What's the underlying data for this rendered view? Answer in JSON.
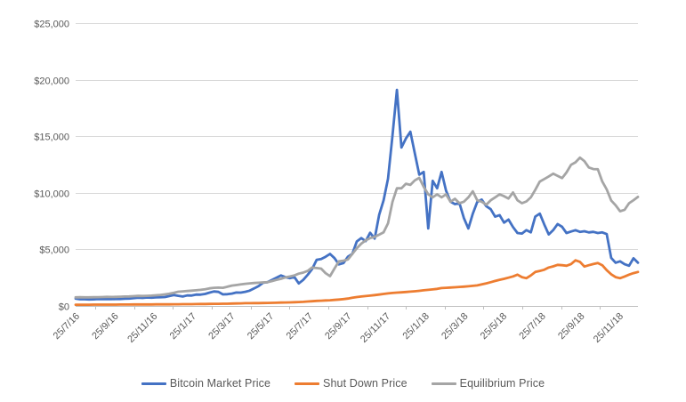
{
  "colors": {
    "background": "#ffffff",
    "gridline": "#d9d9d9",
    "axis_line": "#bfbfbf",
    "axis_text": "#595959",
    "legend_text": "#595959",
    "series_blue": "#4472c4",
    "series_orange": "#ed7d31",
    "series_gray": "#a5a5a5"
  },
  "chart_data": {
    "type": "line",
    "title": "",
    "xlabel": "",
    "ylabel": "",
    "grid": true,
    "legend_position": "bottom",
    "x_axis": {
      "points_start": "25/7/16",
      "points_interval_days": 7,
      "tick_labels": [
        "25/7/16",
        "25/9/16",
        "25/11/16",
        "25/1/17",
        "25/3/17",
        "25/5/17",
        "25/7/17",
        "25/9/17",
        "25/11/17",
        "25/1/18",
        "25/3/18",
        "25/5/18",
        "25/7/18",
        "25/9/18",
        "25/11/18"
      ]
    },
    "y_axis": {
      "min": 0,
      "max": 25000,
      "tick_values": [
        0,
        5000,
        10000,
        15000,
        20000,
        25000
      ],
      "tick_labels": [
        "$0",
        "$5,000",
        "$10,000",
        "$15,000",
        "$20,000",
        "$25,000"
      ]
    },
    "series": [
      {
        "name": "Bitcoin Market Price",
        "color": "#4472c4",
        "values": [
          655,
          590,
          590,
          575,
          580,
          610,
          605,
          610,
          600,
          610,
          615,
          640,
          655,
          690,
          730,
          705,
          745,
          735,
          765,
          770,
          790,
          875,
          960,
          900,
          830,
          925,
          920,
          1010,
          1000,
          1060,
          1180,
          1280,
          1240,
          1020,
          1040,
          1090,
          1190,
          1180,
          1250,
          1350,
          1550,
          1760,
          2050,
          2100,
          2300,
          2500,
          2700,
          2550,
          2450,
          2560,
          1990,
          2300,
          2750,
          3260,
          4080,
          4150,
          4350,
          4600,
          4230,
          3670,
          3790,
          4350,
          4610,
          5700,
          6000,
          5730,
          6470,
          5950,
          8040,
          9330,
          11250,
          15050,
          19100,
          14000,
          14800,
          15400,
          13500,
          11600,
          11850,
          6850,
          11060,
          10400,
          11850,
          10200,
          9210,
          9000,
          9080,
          7760,
          6850,
          8160,
          9200,
          9400,
          8820,
          8550,
          7890,
          8030,
          7370,
          7630,
          6970,
          6450,
          6400,
          6700,
          6500,
          7900,
          8160,
          7200,
          6320,
          6700,
          7240,
          7000,
          6450,
          6580,
          6700,
          6550,
          6600,
          6500,
          6550,
          6450,
          6500,
          6350,
          4250,
          3820,
          3950,
          3690,
          3550,
          4210,
          3820
        ]
      },
      {
        "name": "Shut Down Price",
        "color": "#ed7d31",
        "values": [
          110,
          110,
          110,
          110,
          115,
          115,
          115,
          120,
          120,
          120,
          125,
          125,
          125,
          130,
          130,
          130,
          135,
          135,
          140,
          140,
          145,
          145,
          150,
          150,
          155,
          155,
          160,
          165,
          170,
          175,
          180,
          185,
          190,
          195,
          200,
          210,
          220,
          230,
          240,
          245,
          250,
          255,
          260,
          265,
          275,
          285,
          295,
          305,
          315,
          330,
          345,
          365,
          395,
          420,
          445,
          465,
          485,
          505,
          535,
          565,
          605,
          655,
          720,
          790,
          830,
          870,
          910,
          960,
          1010,
          1060,
          1105,
          1145,
          1180,
          1205,
          1235,
          1265,
          1300,
          1340,
          1380,
          1420,
          1460,
          1510,
          1580,
          1600,
          1625,
          1650,
          1680,
          1705,
          1735,
          1780,
          1815,
          1900,
          2000,
          2100,
          2210,
          2310,
          2400,
          2500,
          2610,
          2765,
          2550,
          2450,
          2700,
          3000,
          3100,
          3200,
          3400,
          3500,
          3630,
          3600,
          3550,
          3700,
          4030,
          3900,
          3480,
          3600,
          3700,
          3790,
          3600,
          3160,
          2800,
          2550,
          2450,
          2600,
          2765,
          2900,
          3000
        ]
      },
      {
        "name": "Equilibrium Price",
        "color": "#a5a5a5",
        "values": [
          760,
          770,
          765,
          760,
          770,
          780,
          790,
          800,
          795,
          805,
          815,
          830,
          845,
          865,
          885,
          880,
          900,
          915,
          940,
          975,
          1020,
          1080,
          1160,
          1260,
          1290,
          1320,
          1350,
          1380,
          1420,
          1480,
          1560,
          1600,
          1620,
          1600,
          1700,
          1800,
          1850,
          1900,
          1960,
          2000,
          2030,
          2050,
          2080,
          2100,
          2200,
          2300,
          2400,
          2520,
          2600,
          2700,
          2850,
          2950,
          3100,
          3400,
          3350,
          3300,
          2900,
          2630,
          3300,
          3950,
          4000,
          4100,
          4600,
          5100,
          5500,
          5800,
          6000,
          6100,
          6300,
          6500,
          7300,
          9200,
          10400,
          10400,
          10800,
          10700,
          11100,
          11320,
          10530,
          9870,
          9600,
          9870,
          9600,
          9870,
          9210,
          9470,
          9080,
          9210,
          9600,
          10130,
          9340,
          9210,
          8950,
          9340,
          9600,
          9870,
          9700,
          9500,
          10030,
          9340,
          9080,
          9240,
          9600,
          10270,
          11000,
          11220,
          11450,
          11690,
          11500,
          11300,
          11800,
          12480,
          12700,
          13110,
          12800,
          12240,
          12100,
          12080,
          11000,
          10300,
          9320,
          8900,
          8370,
          8500,
          9080,
          9350,
          9640
        ]
      }
    ]
  }
}
